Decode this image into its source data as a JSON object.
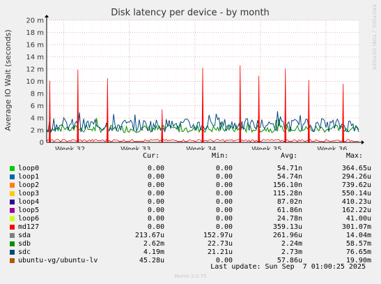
{
  "chart_data": {
    "type": "line",
    "title": "Disk latency per device - by month",
    "ylabel": "Average IO Wait (seconds)",
    "ylim": [
      0,
      0.02
    ],
    "y_ticks": [
      {
        "value": 0,
        "label": "0"
      },
      {
        "value": 0.002,
        "label": "2 m"
      },
      {
        "value": 0.004,
        "label": "4 m"
      },
      {
        "value": 0.006,
        "label": "6 m"
      },
      {
        "value": 0.008,
        "label": "8 m"
      },
      {
        "value": 0.01,
        "label": "10 m"
      },
      {
        "value": 0.012,
        "label": "12 m"
      },
      {
        "value": 0.014,
        "label": "14 m"
      },
      {
        "value": 0.016,
        "label": "16 m"
      },
      {
        "value": 0.018,
        "label": "18 m"
      },
      {
        "value": 0.02,
        "label": "20 m"
      }
    ],
    "x_ticks": [
      "Week 32",
      "Week 33",
      "Week 34",
      "Week 35",
      "Week 36"
    ],
    "grid": true,
    "series": [
      {
        "name": "loop0",
        "color": "#00cc00"
      },
      {
        "name": "loop1",
        "color": "#0066b3"
      },
      {
        "name": "loop2",
        "color": "#ff8000"
      },
      {
        "name": "loop3",
        "color": "#ffcc00"
      },
      {
        "name": "loop4",
        "color": "#330099"
      },
      {
        "name": "loop5",
        "color": "#990099"
      },
      {
        "name": "loop6",
        "color": "#ccff00"
      },
      {
        "name": "md127",
        "color": "#ff0000",
        "spikes": [
          0.0101,
          0.0119,
          0.0105,
          0.0054,
          0.0122,
          0.0126,
          0.0109,
          0.0121,
          0.0102,
          0.0096
        ]
      },
      {
        "name": "sda",
        "color": "#808080"
      },
      {
        "name": "sdb",
        "color": "#008f00",
        "approx_level": 0.0022
      },
      {
        "name": "sdc",
        "color": "#00487d",
        "approx_level": 0.0028
      },
      {
        "name": "ubuntu-vg/ubuntu-lv",
        "color": "#b35a00"
      }
    ]
  },
  "legend": {
    "headers": {
      "cur": "Cur:",
      "min": "Min:",
      "avg": "Avg:",
      "max": "Max:"
    },
    "rows": [
      {
        "name": "loop0",
        "color": "#00cc00",
        "cur": "0.00",
        "min": "0.00",
        "avg": "54.71n",
        "max": "364.65u"
      },
      {
        "name": "loop1",
        "color": "#0066b3",
        "cur": "0.00",
        "min": "0.00",
        "avg": "54.74n",
        "max": "294.26u"
      },
      {
        "name": "loop2",
        "color": "#ff8000",
        "cur": "0.00",
        "min": "0.00",
        "avg": "156.10n",
        "max": "739.62u"
      },
      {
        "name": "loop3",
        "color": "#ffcc00",
        "cur": "0.00",
        "min": "0.00",
        "avg": "115.28n",
        "max": "550.14u"
      },
      {
        "name": "loop4",
        "color": "#330099",
        "cur": "0.00",
        "min": "0.00",
        "avg": "87.02n",
        "max": "410.23u"
      },
      {
        "name": "loop5",
        "color": "#990099",
        "cur": "0.00",
        "min": "0.00",
        "avg": "61.86n",
        "max": "162.22u"
      },
      {
        "name": "loop6",
        "color": "#ccff00",
        "cur": "0.00",
        "min": "0.00",
        "avg": "24.78n",
        "max": "41.00u"
      },
      {
        "name": "md127",
        "color": "#ff0000",
        "cur": "0.00",
        "min": "0.00",
        "avg": "359.13u",
        "max": "301.07m"
      },
      {
        "name": "sda",
        "color": "#808080",
        "cur": "213.67u",
        "min": "152.97u",
        "avg": "261.96u",
        "max": "14.04m"
      },
      {
        "name": "sdb",
        "color": "#008f00",
        "cur": "2.62m",
        "min": "22.73u",
        "avg": "2.24m",
        "max": "58.57m"
      },
      {
        "name": "sdc",
        "color": "#00487d",
        "cur": "4.19m",
        "min": "21.21u",
        "avg": "2.73m",
        "max": "76.65m"
      },
      {
        "name": "ubuntu-vg/ubuntu-lv",
        "color": "#b35a00",
        "cur": "45.28u",
        "min": "0.00",
        "avg": "57.86u",
        "max": "19.90m"
      }
    ]
  },
  "footer": {
    "last_update": "Last update: Sun Sep  7 01:00:25 2025"
  },
  "credits": {
    "munin": "Munin 2.0.75",
    "rrdtool": "RRDTOOL / TOBI OETIKER"
  }
}
